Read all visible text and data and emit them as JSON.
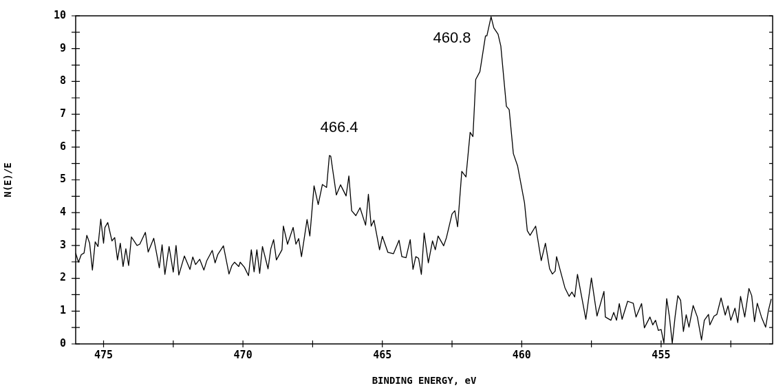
{
  "chart_data": {
    "type": "line",
    "xlabel": "BINDING ENERGY, eV",
    "ylabel": "N(E)/E",
    "xlim": [
      476,
      451
    ],
    "xticks": [
      {
        "value": 475,
        "label": "475"
      },
      {
        "value": 472.5,
        "label": null
      },
      {
        "value": 470,
        "label": "470"
      },
      {
        "value": 467.5,
        "label": null
      },
      {
        "value": 465,
        "label": "465"
      },
      {
        "value": 462.5,
        "label": null
      },
      {
        "value": 460,
        "label": "460"
      },
      {
        "value": 457.5,
        "label": null
      },
      {
        "value": 455,
        "label": "455"
      },
      {
        "value": 452.5,
        "label": null
      }
    ],
    "ylim": [
      0,
      10
    ],
    "yticks": [
      0,
      {
        "value": 0.5,
        "label": null
      },
      1,
      {
        "value": 1.5,
        "label": null
      },
      2,
      {
        "value": 2.5,
        "label": null
      },
      3,
      {
        "value": 3.5,
        "label": null
      },
      4,
      {
        "value": 4.5,
        "label": null
      },
      5,
      {
        "value": 5.5,
        "label": null
      },
      6,
      {
        "value": 6.5,
        "label": null
      },
      7,
      {
        "value": 7.5,
        "label": null
      },
      8,
      {
        "value": 8.5,
        "label": null
      },
      9,
      {
        "value": 9.5,
        "label": null
      },
      10
    ],
    "grid": false,
    "marker": "none",
    "line_style": "solid",
    "annotations": [
      "466.4",
      "460.8"
    ],
    "series": [
      {
        "color": "#000000",
        "x": [
          476.0,
          475.9,
          475.8,
          475.7,
          475.6,
          475.5,
          475.4,
          475.3,
          475.2,
          475.1,
          475.0,
          474.95,
          474.85,
          474.7,
          474.6,
          474.5,
          474.4,
          474.3,
          474.2,
          474.1,
          474.0,
          473.8,
          473.7,
          473.5,
          473.4,
          473.2,
          473.0,
          472.9,
          472.8,
          472.65,
          472.5,
          472.4,
          472.3,
          472.1,
          471.9,
          471.8,
          471.7,
          471.55,
          471.4,
          471.3,
          471.1,
          471.0,
          470.9,
          470.7,
          470.5,
          470.4,
          470.3,
          470.15,
          470.1,
          469.95,
          469.8,
          469.7,
          469.6,
          469.5,
          469.4,
          469.3,
          469.1,
          469.0,
          468.9,
          468.8,
          468.6,
          468.55,
          468.4,
          468.2,
          468.1,
          468.0,
          467.9,
          467.7,
          467.6,
          467.45,
          467.3,
          467.15,
          467.0,
          466.9,
          466.85,
          466.65,
          466.5,
          466.3,
          466.2,
          466.1,
          465.95,
          465.8,
          465.6,
          465.5,
          465.4,
          465.3,
          465.1,
          465.0,
          464.8,
          464.6,
          464.4,
          464.3,
          464.15,
          464.0,
          463.9,
          463.8,
          463.7,
          463.6,
          463.5,
          463.35,
          463.2,
          463.1,
          463.0,
          462.8,
          462.7,
          462.5,
          462.4,
          462.3,
          462.15,
          462.0,
          461.85,
          461.75,
          461.65,
          461.5,
          461.45,
          461.3,
          461.25,
          461.1,
          461.0,
          460.85,
          460.75,
          460.55,
          460.45,
          460.3,
          460.15,
          459.9,
          459.8,
          459.7,
          459.5,
          459.3,
          459.15,
          459.0,
          458.9,
          458.8,
          458.75,
          458.45,
          458.3,
          458.2,
          458.1,
          458.0,
          457.7,
          457.5,
          457.3,
          457.05,
          457.0,
          456.8,
          456.7,
          456.6,
          456.5,
          456.4,
          456.2,
          456.0,
          455.9,
          455.7,
          455.6,
          455.4,
          455.3,
          455.2,
          455.1,
          455.0,
          454.9,
          454.8,
          454.7,
          454.6,
          454.5,
          454.4,
          454.3,
          454.2,
          454.1,
          454.0,
          453.85,
          453.7,
          453.55,
          453.45,
          453.3,
          453.25,
          453.1,
          453.0,
          452.85,
          452.7,
          452.6,
          452.5,
          452.35,
          452.25,
          452.15,
          452.0,
          451.85,
          451.75,
          451.65,
          451.55,
          451.4,
          451.25,
          451.15,
          451.05
        ],
        "values": [
          2.77,
          2.49,
          2.72,
          2.77,
          3.31,
          3.07,
          2.25,
          3.11,
          2.97,
          3.8,
          3.07,
          3.55,
          3.7,
          3.14,
          3.24,
          2.56,
          3.07,
          2.36,
          2.9,
          2.39,
          3.26,
          3.0,
          3.04,
          3.4,
          2.8,
          3.22,
          2.32,
          3.02,
          2.12,
          2.97,
          2.19,
          3.0,
          2.1,
          2.68,
          2.27,
          2.65,
          2.42,
          2.58,
          2.25,
          2.53,
          2.85,
          2.47,
          2.73,
          2.99,
          2.13,
          2.38,
          2.49,
          2.36,
          2.49,
          2.34,
          2.08,
          2.87,
          2.2,
          2.87,
          2.15,
          2.97,
          2.29,
          2.9,
          3.18,
          2.56,
          2.87,
          3.59,
          3.04,
          3.55,
          3.04,
          3.21,
          2.66,
          3.79,
          3.29,
          4.82,
          4.25,
          4.86,
          4.77,
          5.74,
          5.72,
          4.54,
          4.85,
          4.51,
          5.12,
          4.06,
          3.91,
          4.15,
          3.62,
          4.56,
          3.59,
          3.77,
          2.87,
          3.28,
          2.79,
          2.75,
          3.16,
          2.66,
          2.63,
          3.18,
          2.27,
          2.66,
          2.61,
          2.12,
          3.38,
          2.47,
          3.14,
          2.87,
          3.29,
          2.99,
          3.24,
          3.96,
          4.06,
          3.57,
          5.26,
          5.09,
          6.45,
          6.32,
          8.06,
          8.3,
          8.57,
          9.39,
          9.39,
          9.97,
          9.63,
          9.44,
          9.08,
          7.24,
          7.14,
          5.8,
          5.43,
          4.3,
          3.45,
          3.31,
          3.59,
          2.54,
          3.07,
          2.29,
          2.13,
          2.22,
          2.66,
          1.71,
          1.45,
          1.58,
          1.43,
          2.12,
          0.75,
          2.01,
          0.85,
          1.6,
          0.82,
          0.72,
          0.96,
          0.72,
          1.23,
          0.75,
          1.3,
          1.24,
          0.82,
          1.23,
          0.49,
          0.82,
          0.58,
          0.72,
          0.41,
          0.44,
          0.03,
          1.38,
          0.82,
          0.02,
          0.82,
          1.47,
          1.33,
          0.38,
          0.89,
          0.51,
          1.17,
          0.82,
          0.12,
          0.72,
          0.9,
          0.58,
          0.85,
          0.9,
          1.4,
          0.88,
          1.16,
          0.72,
          1.09,
          0.65,
          1.45,
          0.82,
          1.69,
          1.47,
          0.68,
          1.24,
          0.82,
          0.51,
          1.02,
          1.37
        ]
      }
    ]
  }
}
